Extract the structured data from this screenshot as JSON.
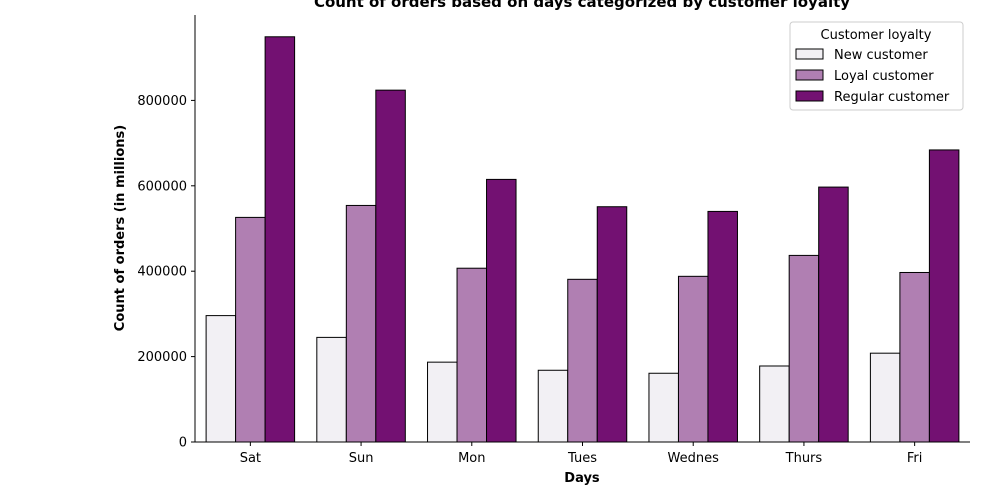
{
  "chart_data": {
    "type": "bar",
    "title": "Count of orders based on days categorized by customer loyalty",
    "xlabel": "Days",
    "ylabel": "Count of orders (in millions)",
    "categories": [
      "Sat",
      "Sun",
      "Mon",
      "Tues",
      "Wednes",
      "Thurs",
      "Fri"
    ],
    "ylim": [
      0,
      1000000
    ],
    "yticks": [
      0,
      200000,
      400000,
      600000,
      800000
    ],
    "ytick_labels": [
      "0",
      "200000",
      "400000",
      "600000",
      "800000"
    ],
    "grid": false,
    "legend": {
      "title": "Customer loyalty",
      "placement": "top-right"
    },
    "series": [
      {
        "name": "New customer",
        "color": "#f2f0f4",
        "values": [
          296000,
          245000,
          187000,
          168000,
          161000,
          178000,
          208000
        ]
      },
      {
        "name": "Loyal customer",
        "color": "#b07fb2",
        "values": [
          526000,
          554000,
          407000,
          381000,
          388000,
          437000,
          397000
        ]
      },
      {
        "name": "Regular customer",
        "color": "#731172",
        "values": [
          949000,
          824000,
          615000,
          551000,
          540000,
          597000,
          684000
        ]
      }
    ]
  }
}
